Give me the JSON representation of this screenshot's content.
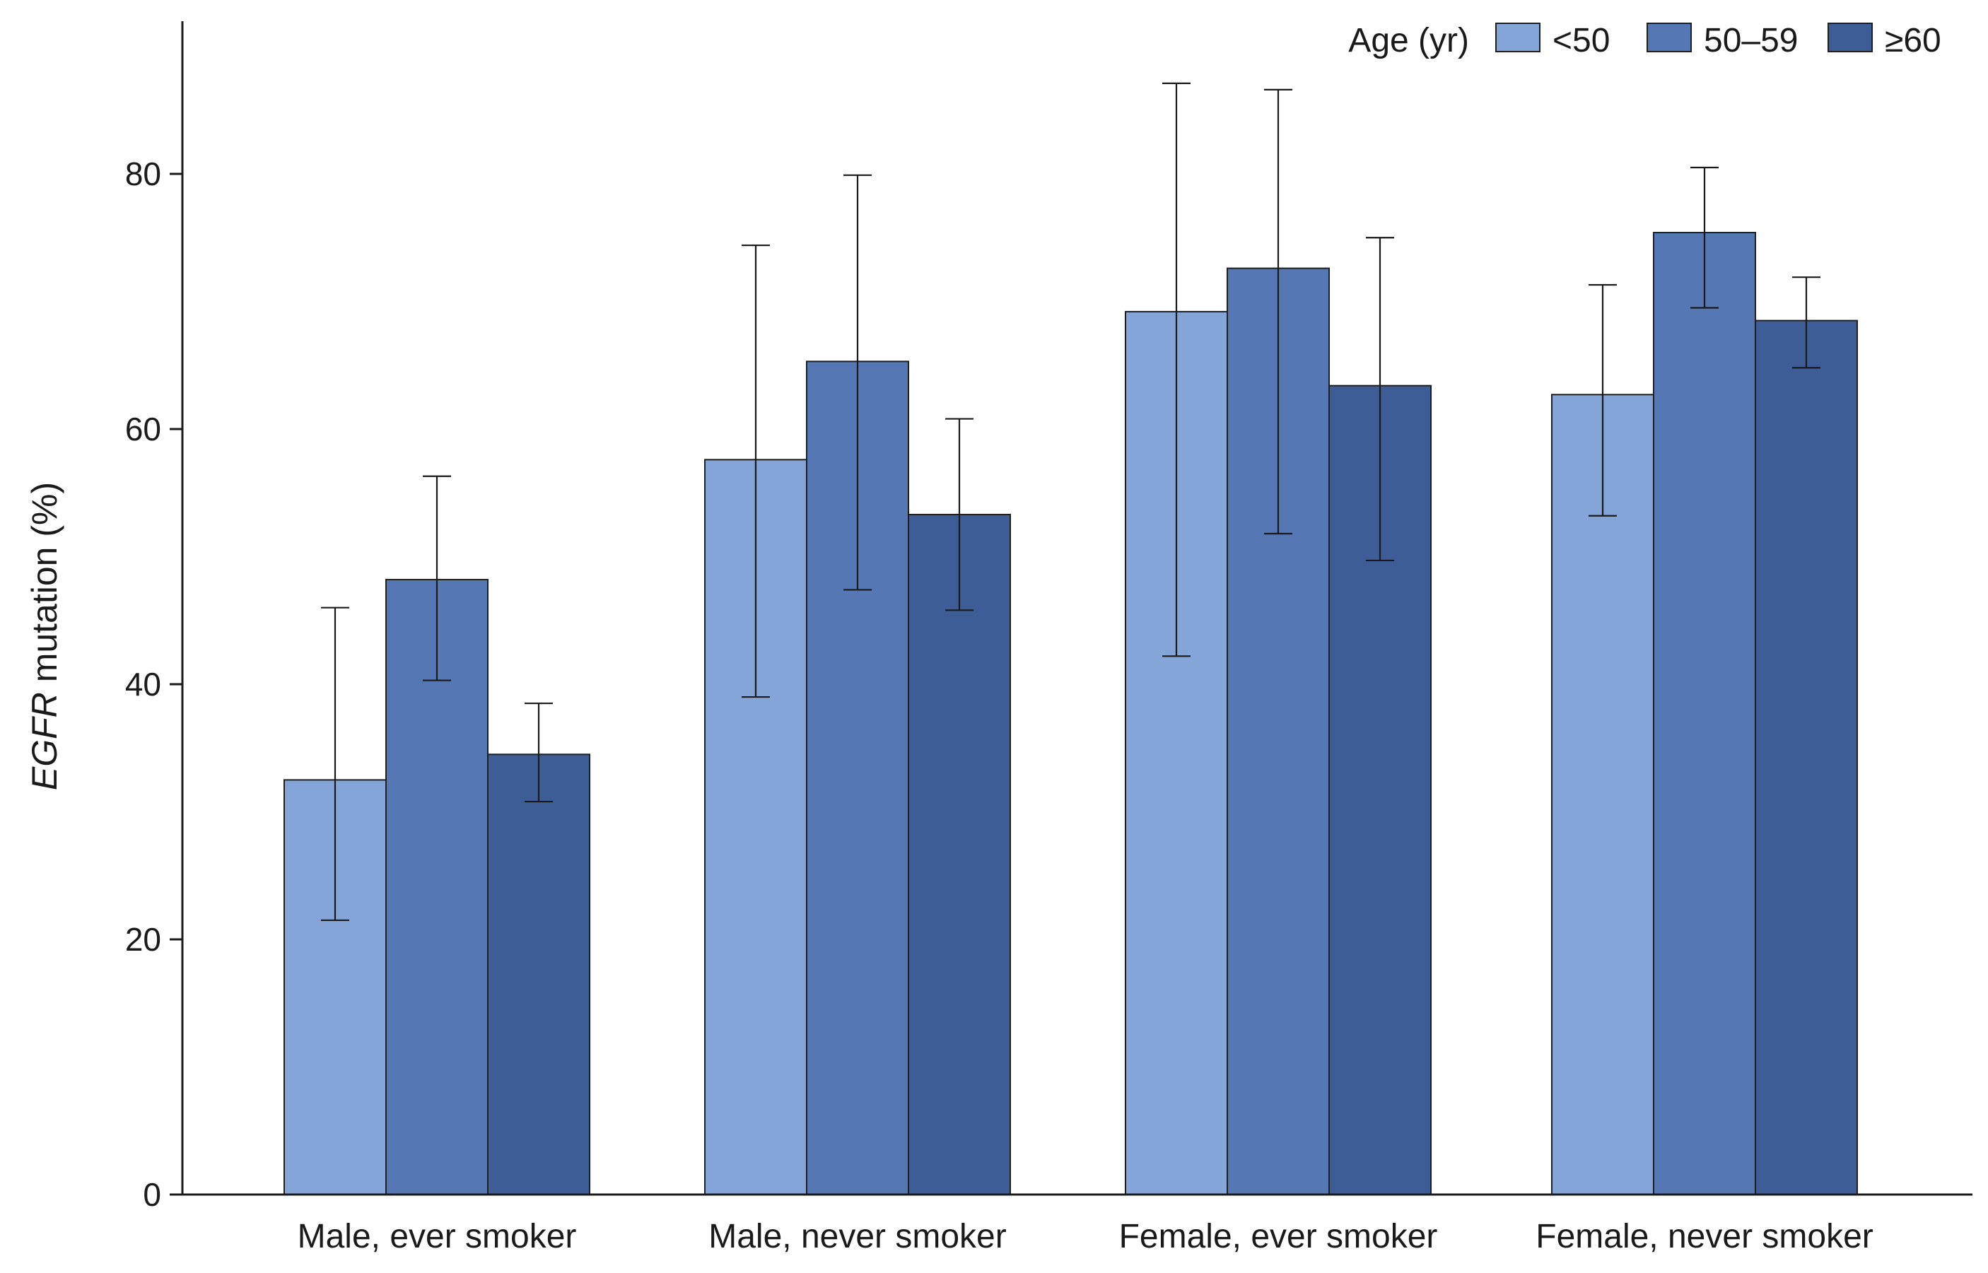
{
  "chart_data": {
    "type": "bar",
    "title": "",
    "ylabel_italic": "EGFR",
    "ylabel_rest": " mutation (%)",
    "xlabel": "",
    "ylim": [
      0,
      92
    ],
    "yticks": [
      0,
      20,
      40,
      60,
      80
    ],
    "categories": [
      "Male, ever smoker",
      "Male, never smoker",
      "Female, ever smoker",
      "Female, never smoker"
    ],
    "legend_title": "Age (yr)",
    "legend_position": "top-right",
    "series": [
      {
        "name": "<50",
        "color": "#85a5d8",
        "values": [
          32.5,
          57.6,
          69.2,
          62.7
        ],
        "err_low": [
          21.5,
          39.0,
          42.2,
          53.2
        ],
        "err_high": [
          46.0,
          74.4,
          87.1,
          71.3
        ]
      },
      {
        "name": "50–59",
        "color": "#5577b4",
        "values": [
          48.2,
          65.3,
          72.6,
          75.4
        ],
        "err_low": [
          40.3,
          47.4,
          51.8,
          69.5
        ],
        "err_high": [
          56.3,
          79.9,
          86.6,
          80.5
        ]
      },
      {
        "name": "≥60",
        "color": "#3e5d96",
        "values": [
          34.5,
          53.3,
          63.4,
          68.5
        ],
        "err_low": [
          30.8,
          45.8,
          49.7,
          64.8
        ],
        "err_high": [
          38.5,
          60.8,
          75.0,
          71.9
        ]
      }
    ]
  }
}
